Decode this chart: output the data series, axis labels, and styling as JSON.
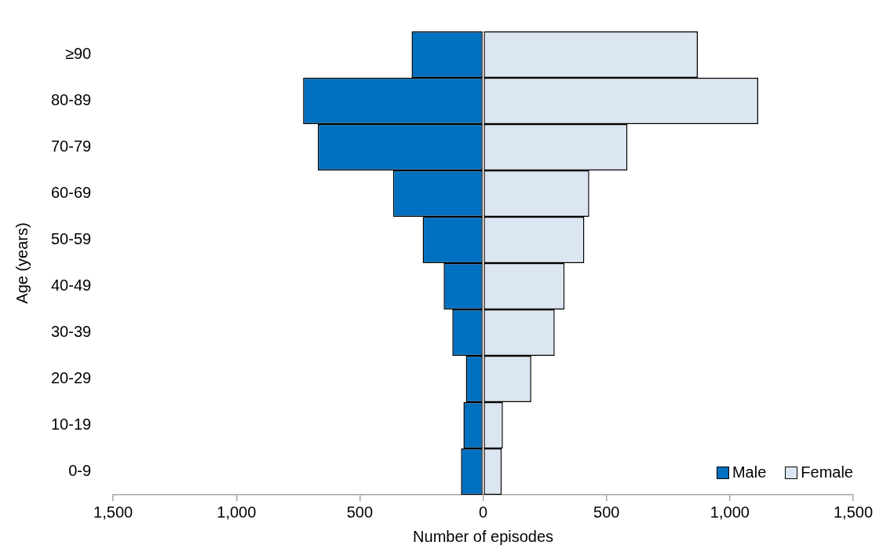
{
  "chart_data": {
    "type": "bar",
    "orientation": "horizontal",
    "stacked": true,
    "xlabel": "Number of episodes",
    "ylabel": "Age (years)",
    "categories": [
      "≥90",
      "80-89",
      "70-79",
      "60-69",
      "50-59",
      "40-49",
      "30-39",
      "20-29",
      "10-19",
      "0-9"
    ],
    "series": [
      {
        "name": "Male",
        "color": "#0070c0",
        "values": [
          -290,
          -730,
          -670,
          -365,
          -245,
          -160,
          -125,
          -70,
          -80,
          -90
        ]
      },
      {
        "name": "Female",
        "color": "#dce6f2",
        "values": [
          870,
          1115,
          585,
          430,
          410,
          330,
          290,
          195,
          80,
          75
        ]
      }
    ],
    "xlim": [
      -1500,
      1500
    ],
    "xticks": [
      {
        "value": -1500,
        "label": "1,500"
      },
      {
        "value": -1000,
        "label": "1,000"
      },
      {
        "value": -500,
        "label": "500"
      },
      0,
      500,
      {
        "value": 1000,
        "label": "1,000"
      },
      {
        "value": 1500,
        "label": "1,500"
      }
    ],
    "grid": false,
    "legend": "bottom right"
  }
}
